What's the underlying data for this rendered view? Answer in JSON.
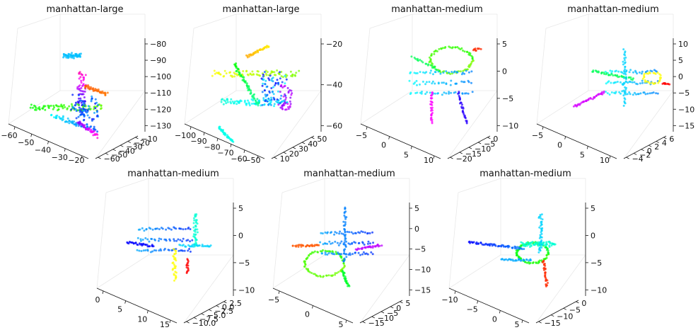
{
  "chart_data": [
    {
      "type": "scatter",
      "title": "manhattan-large",
      "x_ticks": [
        "−60",
        "−50",
        "−40",
        "−30",
        "−20"
      ],
      "y_ticks": [
        "−60",
        "−50",
        "−40",
        "−30",
        "−20",
        "−10"
      ],
      "z_ticks": [
        "−80",
        "−90",
        "−100",
        "−110",
        "−120",
        "−130"
      ],
      "grid": true,
      "point_count": 420
    },
    {
      "type": "scatter",
      "title": "manhattan-large",
      "x_ticks": [
        "−100",
        "−90",
        "−80",
        "−70",
        "−60",
        "−50"
      ],
      "y_ticks": [
        "10",
        "20",
        "30",
        "40",
        "50"
      ],
      "z_ticks": [
        "−20",
        "−40",
        "−60"
      ],
      "grid": true,
      "point_count": 420
    },
    {
      "type": "scatter",
      "title": "manhattan-medium",
      "x_ticks": [
        "−5",
        "0",
        "5",
        "10"
      ],
      "y_ticks": [
        "−20",
        "−15",
        "−10",
        "−5",
        "0"
      ],
      "z_ticks": [
        "5",
        "0",
        "−5",
        "−10"
      ],
      "grid": true,
      "point_count": 300
    },
    {
      "type": "scatter",
      "title": "manhattan-medium",
      "x_ticks": [
        "−5",
        "0",
        "5",
        "10"
      ],
      "y_ticks": [
        "−4",
        "−2",
        "0",
        "2",
        "4",
        "6"
      ],
      "z_ticks": [
        "10",
        "5",
        "0",
        "−5",
        "−10",
        "−15"
      ],
      "grid": true,
      "point_count": 300
    },
    {
      "type": "scatter",
      "title": "manhattan-medium",
      "x_ticks": [
        "0",
        "5",
        "10",
        "15"
      ],
      "y_ticks": [
        "−10.0",
        "−7.5",
        "−5.0",
        "−2.5",
        "0.0",
        "2.5"
      ],
      "z_ticks": [
        "5",
        "0",
        "−5",
        "−10"
      ],
      "grid": true,
      "point_count": 300
    },
    {
      "type": "scatter",
      "title": "manhattan-medium",
      "x_ticks": [
        "−5",
        "0",
        "5"
      ],
      "y_ticks": [
        "−15",
        "−10",
        "−5",
        "0",
        "5"
      ],
      "z_ticks": [
        "5",
        "0",
        "−5",
        "−10",
        "−15"
      ],
      "grid": true,
      "point_count": 300
    },
    {
      "type": "scatter",
      "title": "manhattan-medium",
      "x_ticks": [
        "−10",
        "−5",
        "0",
        "5"
      ],
      "y_ticks": [
        "−15",
        "−10",
        "−5",
        "0"
      ],
      "z_ticks": [
        "5",
        "0",
        "−5",
        "−10"
      ],
      "grid": true,
      "point_count": 300
    }
  ]
}
